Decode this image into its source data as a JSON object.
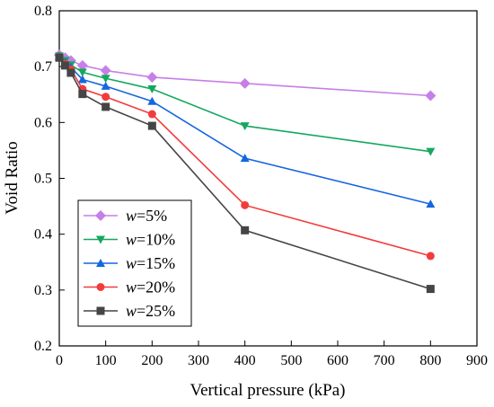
{
  "chart_data": {
    "type": "line",
    "xlabel": "Vertical pressure (kPa)",
    "ylabel": "Void Ratio",
    "xlim": [
      0,
      900
    ],
    "ylim": [
      0.2,
      0.8
    ],
    "xticks": [
      0,
      100,
      200,
      300,
      400,
      500,
      600,
      700,
      800,
      900
    ],
    "yticks": [
      0.2,
      0.3,
      0.4,
      0.5,
      0.6,
      0.7,
      0.8
    ],
    "x": [
      0,
      12.5,
      25,
      50,
      100,
      200,
      400,
      800
    ],
    "grid": false,
    "legend_position": "bottom-left",
    "series": [
      {
        "name": "w=5%",
        "var": "w",
        "label": "=5%",
        "color": "#c77ee8",
        "marker": "diamond",
        "values": [
          0.721,
          0.716,
          0.711,
          0.702,
          0.693,
          0.681,
          0.67,
          0.648
        ]
      },
      {
        "name": "w=10%",
        "var": "w",
        "label": "=10%",
        "color": "#14a85f",
        "marker": "triangle-down",
        "values": [
          0.719,
          0.711,
          0.703,
          0.69,
          0.679,
          0.66,
          0.594,
          0.548
        ]
      },
      {
        "name": "w=15%",
        "var": "w",
        "label": "=15%",
        "color": "#1466e0",
        "marker": "triangle-up",
        "values": [
          0.718,
          0.708,
          0.699,
          0.677,
          0.665,
          0.638,
          0.536,
          0.454
        ]
      },
      {
        "name": "w=20%",
        "var": "w",
        "label": "=20%",
        "color": "#f23c3c",
        "marker": "circle",
        "values": [
          0.717,
          0.705,
          0.695,
          0.66,
          0.646,
          0.615,
          0.452,
          0.361
        ]
      },
      {
        "name": "w=25%",
        "var": "w",
        "label": "=25%",
        "color": "#454545",
        "marker": "square",
        "values": [
          0.716,
          0.702,
          0.689,
          0.651,
          0.628,
          0.594,
          0.407,
          0.302
        ]
      }
    ]
  }
}
